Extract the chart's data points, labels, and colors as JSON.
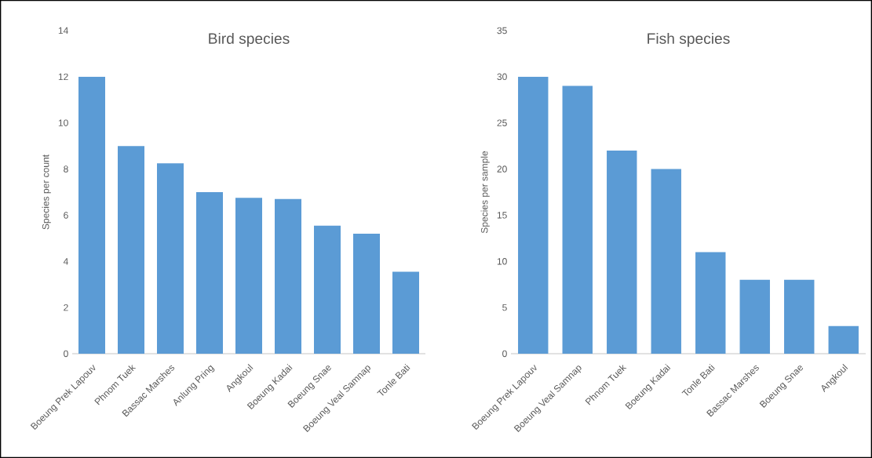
{
  "chart_data": [
    {
      "type": "bar",
      "title": "Bird species",
      "ylabel": "Species per count",
      "color": "#5b9bd5",
      "ylim": [
        0,
        14
      ],
      "yticks": [
        0,
        2,
        4,
        6,
        8,
        10,
        12,
        14
      ],
      "categories": [
        "Boeung Prek Lapouv",
        "Phnom Tuek",
        "Bassac Marshes",
        "Anlung Pring",
        "Angkoul",
        "Boeung Kadai",
        "Boeung Snae",
        "Boeung Veal Samnap",
        "Tonle Bati"
      ],
      "values": [
        12,
        9,
        8.25,
        7,
        6.75,
        6.7,
        5.55,
        5.2,
        3.55
      ]
    },
    {
      "type": "bar",
      "title": "Fish species",
      "ylabel": "Species per sample",
      "color": "#5b9bd5",
      "ylim": [
        0,
        35
      ],
      "yticks": [
        0,
        5,
        10,
        15,
        20,
        25,
        30,
        35
      ],
      "categories": [
        "Boeung Prek Lapouv",
        "Boeung Veal Samnap",
        "Phnom Tuek",
        "Boeung Kadai",
        "Tonle Bati",
        "Bassac Marshes",
        "Boeung Snae",
        "Angkoul"
      ],
      "values": [
        30,
        29,
        22,
        20,
        11,
        8,
        8,
        3
      ]
    }
  ]
}
